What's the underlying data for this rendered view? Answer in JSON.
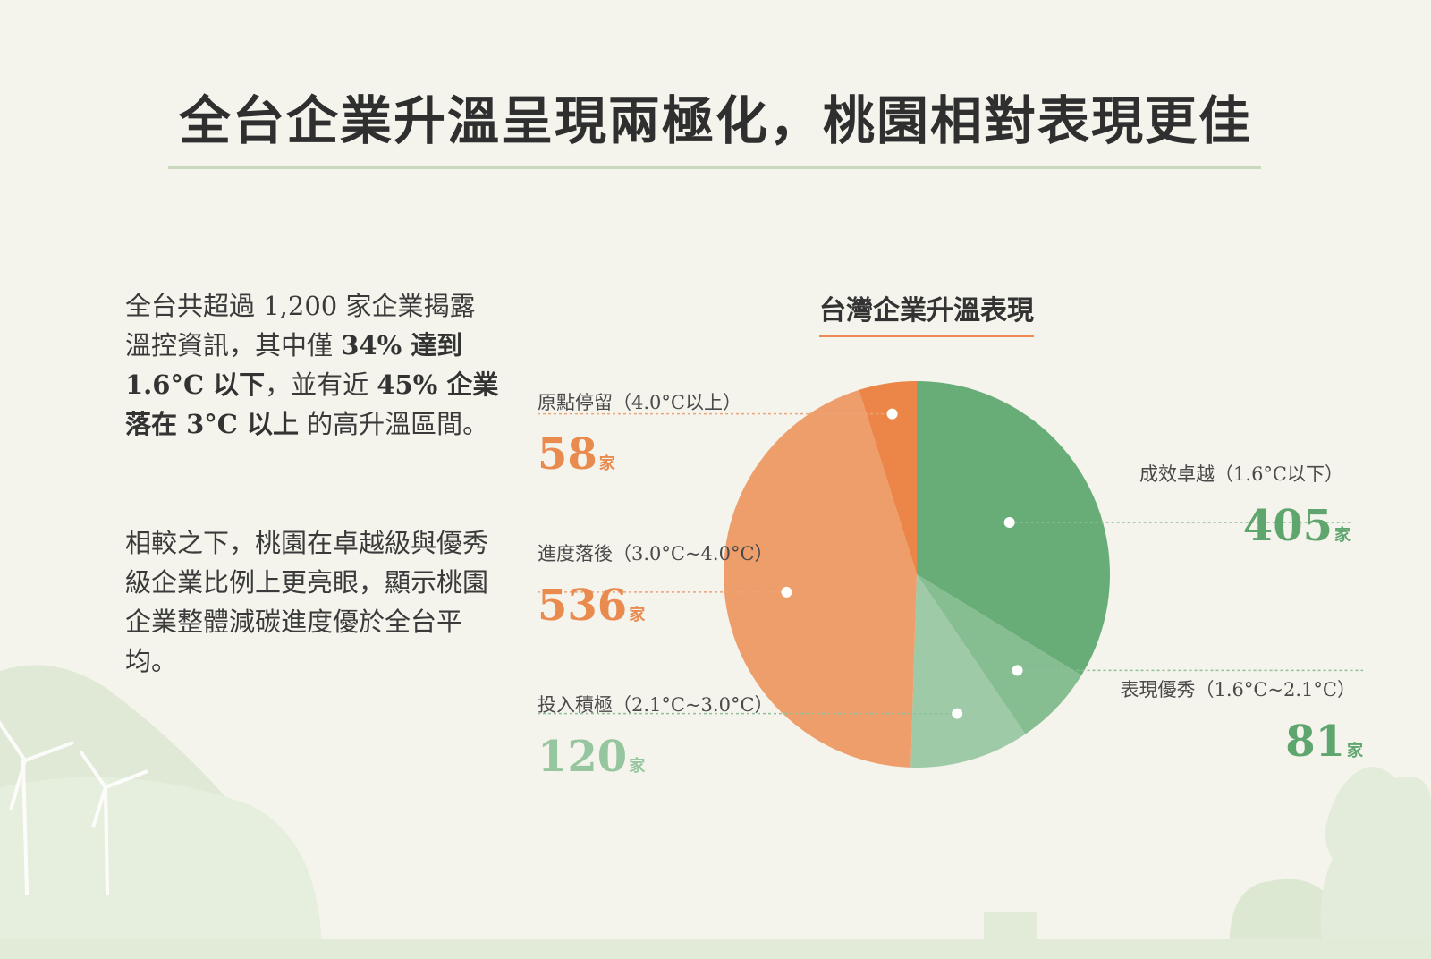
{
  "headline": "全台企業升溫呈現兩極化，桃園相對表現更佳",
  "intro": {
    "p1": [
      {
        "text": "全台共超過 1,200 家企業揭露溫控資訊，其中僅 ",
        "bold": false
      },
      {
        "text": "34% 達到 1.6°C 以下",
        "bold": true
      },
      {
        "text": "，並有近 ",
        "bold": false
      },
      {
        "text": "45% 企業落在 3°C 以上",
        "bold": true
      },
      {
        "text": " 的高升溫區間。",
        "bold": false
      }
    ],
    "p2": "相較之下，桃園在卓越級與優秀級企業比例上更亮眼，顯示桃園企業整體減碳進度優於全台平均。"
  },
  "unit": "家",
  "colors": {
    "excellent": "#68ad78",
    "good": "#86be91",
    "active": "#9fcaa7",
    "behind": "#ee9e6b",
    "stuck": "#eb8648",
    "orange_text": "#e98a4f",
    "green_text": "#5ea56e",
    "light_green_text": "#96c69f"
  },
  "chart_data": {
    "type": "pie",
    "title": "台灣企業升溫表現",
    "start": "12 o'clock",
    "direction": "clockwise",
    "slices": [
      {
        "key": "excellent",
        "label": "成效卓越（1.6°C以下）",
        "value": 405
      },
      {
        "key": "good",
        "label": "表現優秀（1.6°C~2.1°C）",
        "value": 81
      },
      {
        "key": "active",
        "label": "投入積極（2.1°C~3.0°C）",
        "value": 120
      },
      {
        "key": "behind",
        "label": "進度落後（3.0°C~4.0°C）",
        "value": 536
      },
      {
        "key": "stuck",
        "label": "原點停留（4.0°C以上）",
        "value": 58
      }
    ]
  }
}
